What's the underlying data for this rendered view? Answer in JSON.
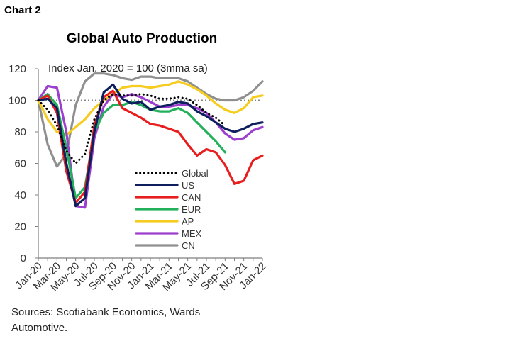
{
  "header": {
    "chart_label": "Chart 2"
  },
  "source": {
    "line1": "Sources: Scotiabank Economics, Wards",
    "line2": "Automotive."
  },
  "chart_data": {
    "type": "line",
    "title": "Global Auto Production",
    "subtitle": "Index Jan. 2020 = 100 (3mma sa)",
    "xlabel": "",
    "ylabel": "",
    "ylim": [
      0,
      120
    ],
    "yticks": [
      0,
      20,
      40,
      60,
      80,
      100,
      120
    ],
    "reference_line": 100,
    "grid": false,
    "legend_position": "center",
    "x": [
      "Jan-20",
      "Feb-20",
      "Mar-20",
      "Apr-20",
      "May-20",
      "Jun-20",
      "Jul-20",
      "Aug-20",
      "Sep-20",
      "Oct-20",
      "Nov-20",
      "Dec-20",
      "Jan-21",
      "Feb-21",
      "Mar-21",
      "Apr-21",
      "May-21",
      "Jun-21",
      "Jul-21",
      "Aug-21",
      "Sep-21",
      "Oct-21",
      "Nov-21",
      "Dec-21",
      "Jan-22"
    ],
    "xtick_labels": [
      "Jan-20",
      "Mar-20",
      "May-20",
      "Jul-20",
      "Sep-20",
      "Nov-20",
      "Jan-21",
      "Mar-21",
      "May-21",
      "Jul-21",
      "Sep-21",
      "Nov-21",
      "Jan-22"
    ],
    "series": [
      {
        "name": "Global",
        "color": "#000000",
        "dash": "dotted",
        "values": [
          100,
          94,
          84,
          68,
          60,
          66,
          88,
          100,
          104,
          103,
          103,
          104,
          103,
          101,
          101,
          102,
          101,
          97,
          92,
          89,
          84,
          null,
          null,
          null,
          null
        ]
      },
      {
        "name": "US",
        "color": "#0d1f5c",
        "dash": "solid",
        "values": [
          100,
          101,
          95,
          60,
          33,
          38,
          80,
          105,
          110,
          101,
          98,
          99,
          94,
          96,
          97,
          99,
          98,
          93,
          90,
          86,
          82,
          80,
          82,
          85,
          86
        ]
      },
      {
        "name": "CAN",
        "color": "#e81d1d",
        "dash": "solid",
        "values": [
          100,
          103,
          92,
          55,
          35,
          42,
          84,
          102,
          106,
          95,
          92,
          89,
          85,
          84,
          82,
          80,
          72,
          65,
          69,
          67,
          59,
          47,
          49,
          62,
          65
        ]
      },
      {
        "name": "EUR",
        "color": "#22b05a",
        "dash": "solid",
        "values": [
          100,
          104,
          97,
          70,
          38,
          45,
          80,
          92,
          97,
          97,
          99,
          97,
          94,
          93,
          93,
          95,
          92,
          86,
          80,
          74,
          67,
          null,
          null,
          null,
          null
        ]
      },
      {
        "name": "AP",
        "color": "#f5cc1f",
        "dash": "solid",
        "values": [
          100,
          88,
          80,
          78,
          83,
          88,
          95,
          100,
          104,
          108,
          109,
          109,
          108,
          109,
          110,
          112,
          110,
          107,
          103,
          98,
          94,
          92,
          95,
          102,
          103
        ]
      },
      {
        "name": "MEX",
        "color": "#9d3fce",
        "dash": "solid",
        "values": [
          100,
          109,
          108,
          80,
          33,
          32,
          76,
          96,
          104,
          102,
          104,
          102,
          99,
          96,
          96,
          97,
          97,
          95,
          92,
          86,
          79,
          75,
          76,
          81,
          83
        ]
      },
      {
        "name": "CN",
        "color": "#8f8f8f",
        "dash": "solid",
        "values": [
          100,
          72,
          58,
          66,
          97,
          112,
          117,
          117,
          116,
          114,
          113,
          115,
          115,
          114,
          114,
          114,
          112,
          108,
          104,
          101,
          100,
          100,
          102,
          106,
          112
        ]
      }
    ]
  }
}
